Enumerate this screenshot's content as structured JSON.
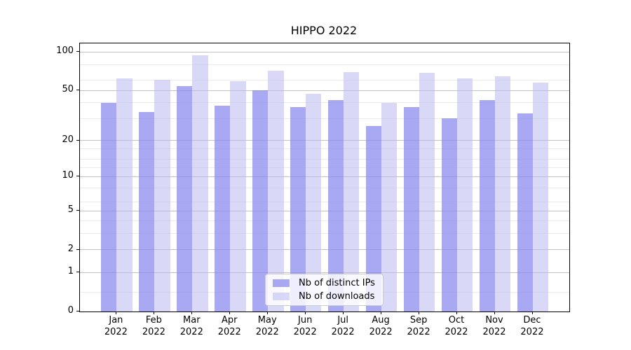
{
  "chart_data": {
    "type": "bar",
    "title": "HIPPO 2022",
    "categories": [
      "Jan",
      "Feb",
      "Mar",
      "Apr",
      "May",
      "Jun",
      "Jul",
      "Aug",
      "Sep",
      "Oct",
      "Nov",
      "Dec"
    ],
    "year_label": "2022",
    "series": [
      {
        "name": "Nb of distinct IPs",
        "color": "rgba(136,136,238,0.72)",
        "color_hex_on_white": "#a9a9f3",
        "values": [
          40,
          34,
          54,
          38,
          50,
          37,
          42,
          26,
          37,
          30,
          42,
          33
        ]
      },
      {
        "name": "Nb of downloads",
        "color": "rgba(186,186,240,0.55)",
        "color_hex_on_white": "#d9d9f7",
        "values": [
          62,
          61,
          94,
          59,
          72,
          47,
          70,
          40,
          69,
          62,
          65,
          58
        ]
      }
    ],
    "xlabel": "",
    "ylabel": "",
    "yscale": "log10(value+1)",
    "yticks": [
      0,
      1,
      2,
      5,
      10,
      20,
      50,
      100
    ],
    "yticks_minor": [
      0.4,
      3,
      4,
      6,
      8,
      12,
      14,
      17,
      30,
      40,
      60,
      80
    ],
    "ylim": [
      0,
      117
    ],
    "grid": true,
    "grid_major_color": "#c2c2c2",
    "grid_minor_color": "#ebebeb",
    "spine_color": "#000000",
    "legend_position": "lower center"
  }
}
